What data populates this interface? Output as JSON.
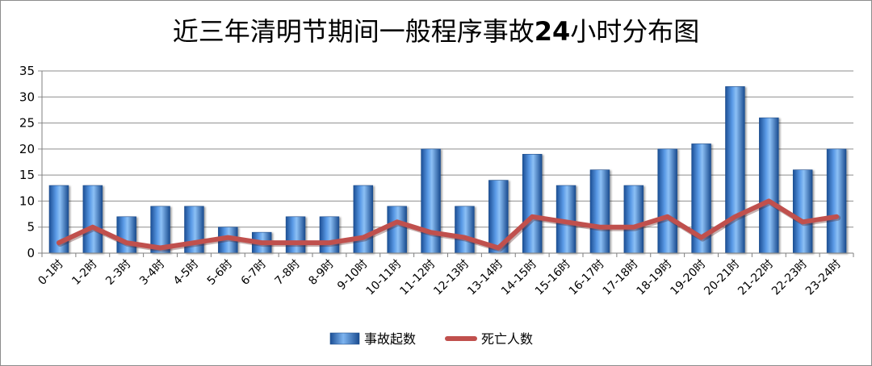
{
  "chart_data": {
    "type": "bar",
    "title": "近三年清明节期间一般程序事故24小时分布图",
    "title_parts": [
      "近三年清明节期间一般程序事故",
      "24",
      "小时分布图"
    ],
    "categories": [
      "0-1时",
      "1-2时",
      "2-3时",
      "3-4时",
      "4-5时",
      "5-6时",
      "6-7时",
      "7-8时",
      "8-9时",
      "9-10时",
      "10-11时",
      "11-12时",
      "12-13时",
      "13-14时",
      "14-15时",
      "15-16时",
      "16-17时",
      "17-18时",
      "18-19时",
      "19-20时",
      "20-21时",
      "21-22时",
      "22-23时",
      "23-24时"
    ],
    "series": [
      {
        "name": "事故起数",
        "type": "bar",
        "color": "#2e75c8",
        "values": [
          13,
          13,
          7,
          9,
          9,
          5,
          4,
          7,
          7,
          13,
          9,
          20,
          9,
          14,
          19,
          13,
          16,
          13,
          20,
          21,
          32,
          26,
          16,
          20
        ]
      },
      {
        "name": "死亡人数",
        "type": "line",
        "color": "#c0504d",
        "values": [
          2,
          5,
          2,
          1,
          2,
          3,
          2,
          2,
          2,
          3,
          6,
          4,
          3,
          1,
          7,
          6,
          5,
          5,
          7,
          3,
          7,
          10,
          6,
          7
        ]
      }
    ],
    "yticks": [
      "0",
      "5",
      "10",
      "15",
      "20",
      "25",
      "30",
      "35"
    ],
    "ylim": [
      0,
      35
    ],
    "xlabel": "",
    "ylabel": "",
    "grid": true,
    "legend": "bottom"
  }
}
